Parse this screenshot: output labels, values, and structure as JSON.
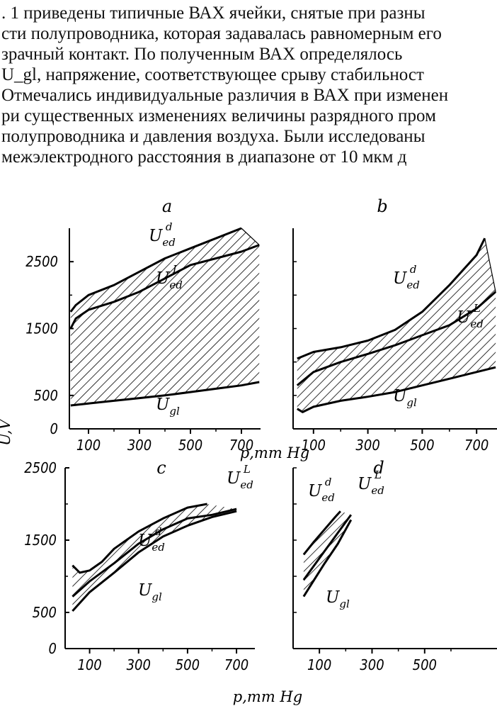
{
  "document": {
    "lines": [
      ". 1 приведены типичные ВАХ ячейки, снятые при разны",
      "сти полупроводника, которая задавалась равномерным его",
      "зрачный контакт. По полученным ВАХ определялось",
      "U_gl, напряжение, соответствующее срыву стабильност",
      "Отмечались индивидуальные различия в ВАХ при изменен",
      "ри существенных изменениях величины разрядного пром",
      "полупроводника и давления воздуха. Были исследованы",
      "межэлектродного расстояния в диапазоне от 10 мкм д"
    ]
  },
  "figure": {
    "shared_ylabel": "U,V",
    "shared_xlabel": "p,mm Hg",
    "label_letter": "U",
    "sub_ed": "ed",
    "sub_gl": "gl",
    "sup_d": "d",
    "sup_l": "L"
  },
  "chart_data": [
    {
      "type": "area",
      "panel": "a",
      "title": "a",
      "xlim": [
        25,
        775
      ],
      "ylim": [
        0,
        3000
      ],
      "xticks": [
        "100",
        "300",
        "500",
        "700"
      ],
      "yticks": [
        "0",
        "500",
        "1500",
        "2500"
      ],
      "series": [
        {
          "name": "U_ed^d",
          "x": [
            30,
            50,
            100,
            200,
            300,
            400,
            500,
            600,
            700
          ],
          "y": [
            1750,
            1850,
            2000,
            2150,
            2350,
            2550,
            2700,
            2850,
            3000
          ]
        },
        {
          "name": "U_ed^L",
          "x": [
            30,
            50,
            100,
            200,
            300,
            400,
            500,
            600,
            700,
            770
          ],
          "y": [
            1500,
            1650,
            1780,
            1900,
            2050,
            2250,
            2450,
            2550,
            2650,
            2750
          ]
        },
        {
          "name": "U_gl",
          "x": [
            30,
            100,
            200,
            300,
            400,
            500,
            600,
            700,
            770
          ],
          "y": [
            350,
            380,
            420,
            460,
            500,
            550,
            600,
            650,
            700
          ]
        }
      ]
    },
    {
      "type": "area",
      "panel": "b",
      "title": "b",
      "xlim": [
        25,
        775
      ],
      "ylim": [
        0,
        3000
      ],
      "xticks": [
        "100",
        "300",
        "500",
        "700"
      ],
      "yticks": [
        "0",
        "500",
        "1500",
        "2500"
      ],
      "series": [
        {
          "name": "U_ed^d",
          "x": [
            40,
            100,
            200,
            300,
            400,
            500,
            600,
            700,
            730
          ],
          "y": [
            1050,
            1150,
            1220,
            1320,
            1480,
            1750,
            2150,
            2600,
            2850
          ]
        },
        {
          "name": "U_ed^L",
          "x": [
            40,
            100,
            200,
            300,
            400,
            500,
            600,
            700,
            770
          ],
          "y": [
            650,
            850,
            1000,
            1120,
            1250,
            1400,
            1550,
            1800,
            2050
          ]
        },
        {
          "name": "U_gl",
          "x": [
            40,
            60,
            100,
            200,
            300,
            400,
            500,
            600,
            700,
            770
          ],
          "y": [
            300,
            250,
            330,
            420,
            480,
            550,
            650,
            750,
            850,
            920
          ]
        }
      ]
    },
    {
      "type": "area",
      "panel": "c",
      "title": "c",
      "xlim": [
        0,
        775
      ],
      "ylim": [
        0,
        2500
      ],
      "xticks": [
        "100",
        "300",
        "500",
        "700"
      ],
      "yticks": [
        "0",
        "500",
        "1500",
        "2500"
      ],
      "series": [
        {
          "name": "U_ed^d",
          "x": [
            30,
            60,
            100,
            150,
            200,
            300,
            400,
            500,
            580
          ],
          "y": [
            1150,
            1050,
            1080,
            1200,
            1380,
            1620,
            1800,
            1950,
            2000
          ]
        },
        {
          "name": "U_ed^L",
          "x": [
            30,
            100,
            200,
            300,
            400,
            500,
            600,
            700
          ],
          "y": [
            720,
            930,
            1180,
            1450,
            1650,
            1800,
            1850,
            1930
          ]
        },
        {
          "name": "U_gl",
          "x": [
            30,
            100,
            200,
            300,
            400,
            500,
            600,
            700
          ],
          "y": [
            520,
            780,
            1050,
            1330,
            1550,
            1700,
            1820,
            1900
          ]
        }
      ]
    },
    {
      "type": "area",
      "panel": "d",
      "title": "d",
      "xlim": [
        0,
        775
      ],
      "ylim": [
        0,
        2500
      ],
      "xticks": [
        "100",
        "300",
        "500"
      ],
      "yticks": [],
      "series": [
        {
          "name": "U_ed^d",
          "x": [
            40,
            80,
            120,
            160,
            180
          ],
          "y": [
            1300,
            1480,
            1650,
            1820,
            1900
          ]
        },
        {
          "name": "U_ed^L",
          "x": [
            40,
            80,
            120,
            170,
            220
          ],
          "y": [
            950,
            1150,
            1350,
            1600,
            1850
          ]
        },
        {
          "name": "U_gl",
          "x": [
            40,
            80,
            120,
            170,
            220
          ],
          "y": [
            720,
            950,
            1180,
            1450,
            1780
          ]
        }
      ]
    }
  ]
}
